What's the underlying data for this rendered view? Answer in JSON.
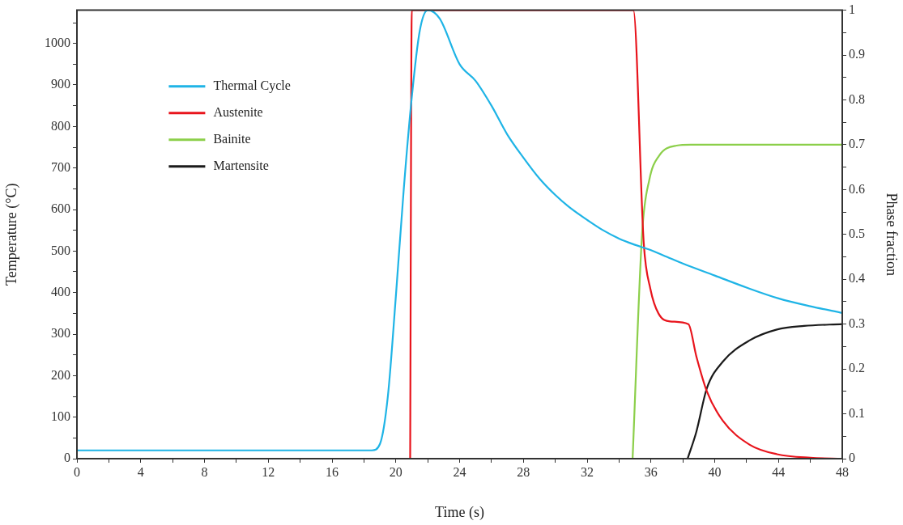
{
  "chart_data": {
    "type": "line",
    "xlabel": "Time (s)",
    "ylabel": "Temperature (°C)",
    "y2label": "Phase fraction",
    "xlim": [
      0,
      48
    ],
    "ylim": [
      0,
      1080
    ],
    "y2lim": [
      0,
      1
    ],
    "xticks": [
      0,
      {
        "value": 2,
        "label": null
      },
      4,
      {
        "value": 6,
        "label": null
      },
      8,
      {
        "value": 10,
        "label": null
      },
      12,
      {
        "value": 14,
        "label": null
      },
      16,
      {
        "value": 18,
        "label": null
      },
      20,
      {
        "value": 22,
        "label": null
      },
      24,
      {
        "value": 26,
        "label": null
      },
      28,
      {
        "value": 30,
        "label": null
      },
      32,
      {
        "value": 34,
        "label": null
      },
      36,
      {
        "value": 38,
        "label": null
      },
      40,
      {
        "value": 42,
        "label": null
      },
      44,
      {
        "value": 46,
        "label": null
      },
      48
    ],
    "yticks": [
      0,
      {
        "value": 50,
        "label": null
      },
      100,
      {
        "value": 150,
        "label": null
      },
      200,
      {
        "value": 250,
        "label": null
      },
      300,
      {
        "value": 350,
        "label": null
      },
      400,
      {
        "value": 450,
        "label": null
      },
      500,
      {
        "value": 550,
        "label": null
      },
      600,
      {
        "value": 650,
        "label": null
      },
      700,
      {
        "value": 750,
        "label": null
      },
      800,
      {
        "value": 850,
        "label": null
      },
      900,
      {
        "value": 950,
        "label": null
      },
      1000,
      {
        "value": 1050,
        "label": null
      }
    ],
    "y2ticks": [
      0,
      {
        "value": 0.05,
        "label": null
      },
      0.1,
      {
        "value": 0.15,
        "label": null
      },
      0.2,
      {
        "value": 0.25,
        "label": null
      },
      0.3,
      {
        "value": 0.35,
        "label": null
      },
      0.4,
      {
        "value": 0.45,
        "label": null
      },
      0.5,
      {
        "value": 0.55,
        "label": null
      },
      0.6,
      {
        "value": 0.65,
        "label": null
      },
      0.7,
      {
        "value": 0.75,
        "label": null
      },
      0.8,
      {
        "value": 0.85,
        "label": null
      },
      0.9,
      {
        "value": 0.95,
        "label": null
      },
      1
    ],
    "grid": false,
    "legend": "top left",
    "marker": "none",
    "line_style": "solid",
    "series": [
      {
        "name": "Thermal Cycle",
        "color": "#1fb4e6",
        "x": [
          0,
          18.5,
          19,
          19.5,
          20,
          20.5,
          21,
          21.5,
          22,
          22.75,
          24,
          25,
          26,
          27,
          28,
          29,
          30,
          31,
          32,
          33,
          34,
          35,
          36,
          37,
          38,
          40,
          42,
          44,
          46,
          48
        ],
        "values": [
          20,
          20,
          35,
          150,
          390,
          650,
          870,
          1030,
          1080,
          1060,
          950,
          910,
          850,
          780,
          725,
          675,
          635,
          602,
          575,
          550,
          530,
          515,
          502,
          486,
          470,
          441,
          412,
          386,
          367,
          351
        ]
      },
      {
        "name": "Austenite",
        "color": "#e8141c",
        "axis": "y2",
        "x": [
          20.9,
          21,
          34.9,
          35.55,
          35.97,
          36.47,
          37.2,
          38.35,
          38.85,
          39.5,
          40.5,
          42.2,
          43.9,
          46,
          48
        ],
        "values": [
          0,
          1,
          1,
          0.48,
          0.378,
          0.324,
          0.306,
          0.3,
          0.228,
          0.151,
          0.085,
          0.031,
          0.01,
          0.002,
          0
        ]
      },
      {
        "name": "Bainite",
        "color": "#8ccf4a",
        "axis": "y2",
        "x": [
          34.85,
          35.45,
          35.9,
          36.5,
          37.6,
          38.5,
          48
        ],
        "values": [
          0,
          0.504,
          0.622,
          0.675,
          0.698,
          0.7,
          0.7
        ]
      },
      {
        "name": "Martensite",
        "color": "#1a1a1a",
        "axis": "y2",
        "x": [
          38.3,
          38.85,
          39.5,
          40.5,
          42.2,
          43.9,
          45.6,
          48
        ],
        "values": [
          0,
          0.06,
          0.156,
          0.216,
          0.264,
          0.288,
          0.296,
          0.3
        ]
      }
    ]
  }
}
